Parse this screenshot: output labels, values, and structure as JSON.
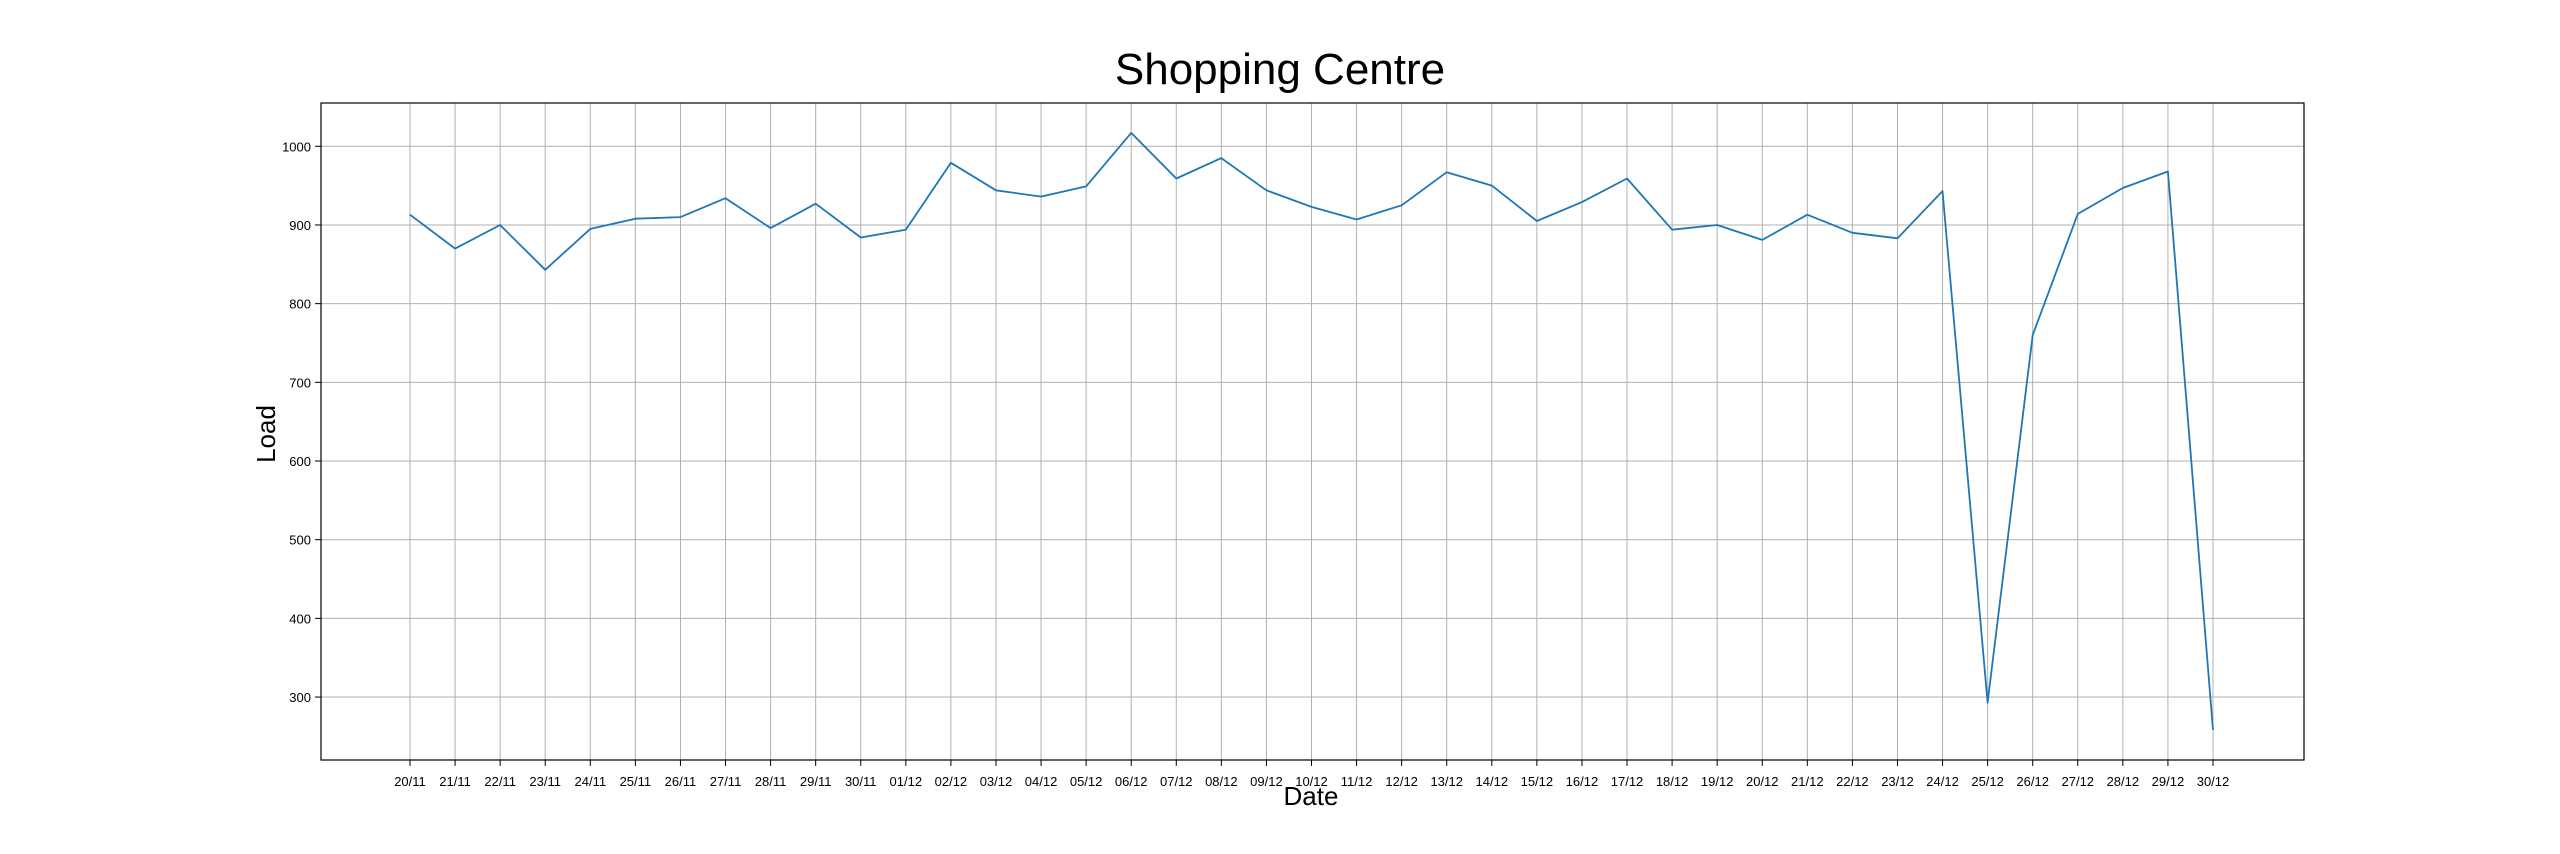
{
  "chart_data": {
    "type": "line",
    "title": "Shopping Centre",
    "xlabel": "Date",
    "ylabel": "Load",
    "grid": true,
    "ylim": [
      220,
      1055
    ],
    "yticks": [
      300,
      400,
      500,
      600,
      700,
      800,
      900,
      1000
    ],
    "categories": [
      "20/11",
      "21/11",
      "22/11",
      "23/11",
      "24/11",
      "25/11",
      "26/11",
      "27/11",
      "28/11",
      "29/11",
      "30/11",
      "01/12",
      "02/12",
      "03/12",
      "04/12",
      "05/12",
      "06/12",
      "07/12",
      "08/12",
      "09/12",
      "10/12",
      "11/12",
      "12/12",
      "13/12",
      "14/12",
      "15/12",
      "16/12",
      "17/12",
      "18/12",
      "19/12",
      "20/12",
      "21/12",
      "22/12",
      "23/12",
      "24/12",
      "25/12",
      "26/12",
      "27/12",
      "28/12",
      "29/12",
      "30/12"
    ],
    "series": [
      {
        "color": "#1f77b4",
        "values": [
          913,
          870,
          900,
          843,
          895,
          908,
          910,
          934,
          896,
          927,
          884,
          894,
          979,
          944,
          936,
          949,
          1017,
          959,
          985,
          944,
          923,
          907,
          925,
          967,
          950,
          905,
          929,
          959,
          894,
          900,
          881,
          913,
          890,
          883,
          943,
          293,
          760,
          914,
          947,
          968,
          258
        ]
      }
    ]
  }
}
